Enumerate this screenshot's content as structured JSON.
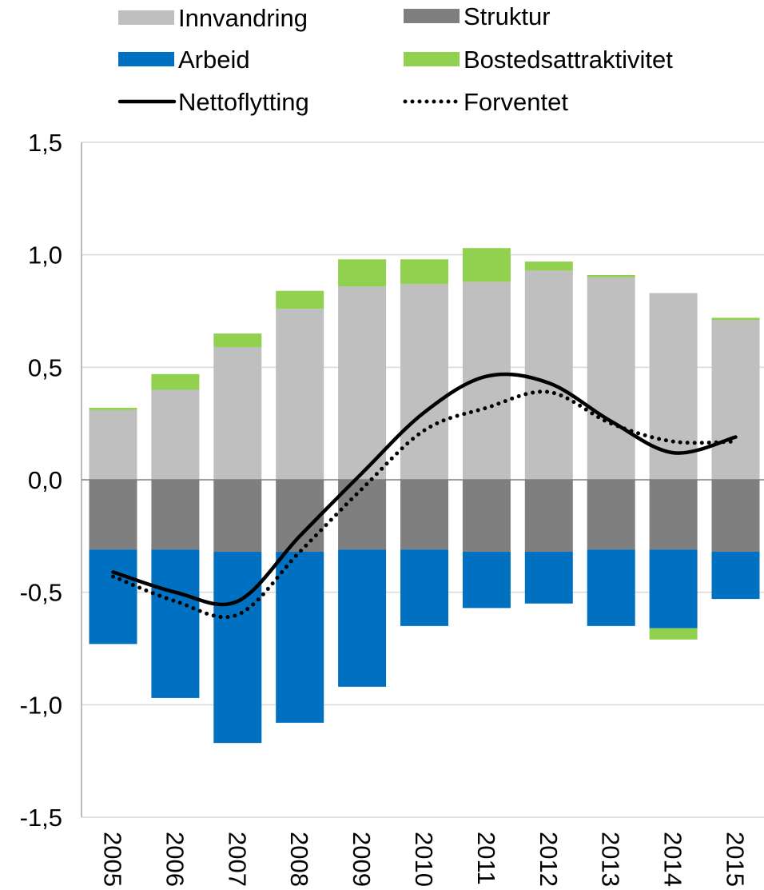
{
  "chart_data": {
    "type": "bar",
    "stacked": true,
    "categories": [
      "2005",
      "2006",
      "2007",
      "2008",
      "2009",
      "2010",
      "2011",
      "2012",
      "2013",
      "2014",
      "2015"
    ],
    "ylim": [
      -1.5,
      1.5
    ],
    "yticks": [
      {
        "value": 1.5,
        "label": "1,5"
      },
      {
        "value": 1.0,
        "label": "1,0"
      },
      {
        "value": 0.5,
        "label": "0,5"
      },
      {
        "value": 0.0,
        "label": "0,0"
      },
      {
        "value": -0.5,
        "label": "-0,5"
      },
      {
        "value": -1.0,
        "label": "-1,0"
      },
      {
        "value": -1.5,
        "label": "-1,5"
      }
    ],
    "grid": true,
    "legend_position": "top",
    "series": [
      {
        "name": "Innvandring",
        "kind": "bar",
        "color": "#bfbfbf",
        "values": [
          0.31,
          0.4,
          0.59,
          0.76,
          0.86,
          0.87,
          0.88,
          0.93,
          0.9,
          0.83,
          0.71
        ]
      },
      {
        "name": "Struktur",
        "kind": "bar",
        "color": "#7f7f7f",
        "values": [
          -0.31,
          -0.31,
          -0.32,
          -0.32,
          -0.31,
          -0.31,
          -0.32,
          -0.32,
          -0.31,
          -0.31,
          -0.32
        ]
      },
      {
        "name": "Arbeid",
        "kind": "bar",
        "color": "#0070c0",
        "values": [
          -0.42,
          -0.66,
          -0.85,
          -0.76,
          -0.61,
          -0.34,
          -0.25,
          -0.23,
          -0.34,
          -0.35,
          -0.21
        ]
      },
      {
        "name": "Bostedsattraktivitet",
        "kind": "bar",
        "color": "#92d050",
        "values": [
          0.01,
          0.07,
          0.06,
          0.08,
          0.12,
          0.11,
          0.15,
          0.04,
          0.01,
          -0.05,
          0.01
        ]
      },
      {
        "name": "Nettoflytting",
        "kind": "line",
        "style": "solid",
        "color": "#000000",
        "values": [
          -0.41,
          -0.5,
          -0.54,
          -0.25,
          0.03,
          0.3,
          0.46,
          0.43,
          0.26,
          0.12,
          0.19
        ]
      },
      {
        "name": "Forventet",
        "kind": "line",
        "style": "dotted",
        "color": "#000000",
        "values": [
          -0.43,
          -0.54,
          -0.6,
          -0.32,
          -0.04,
          0.22,
          0.32,
          0.39,
          0.25,
          0.17,
          0.17
        ]
      }
    ]
  }
}
